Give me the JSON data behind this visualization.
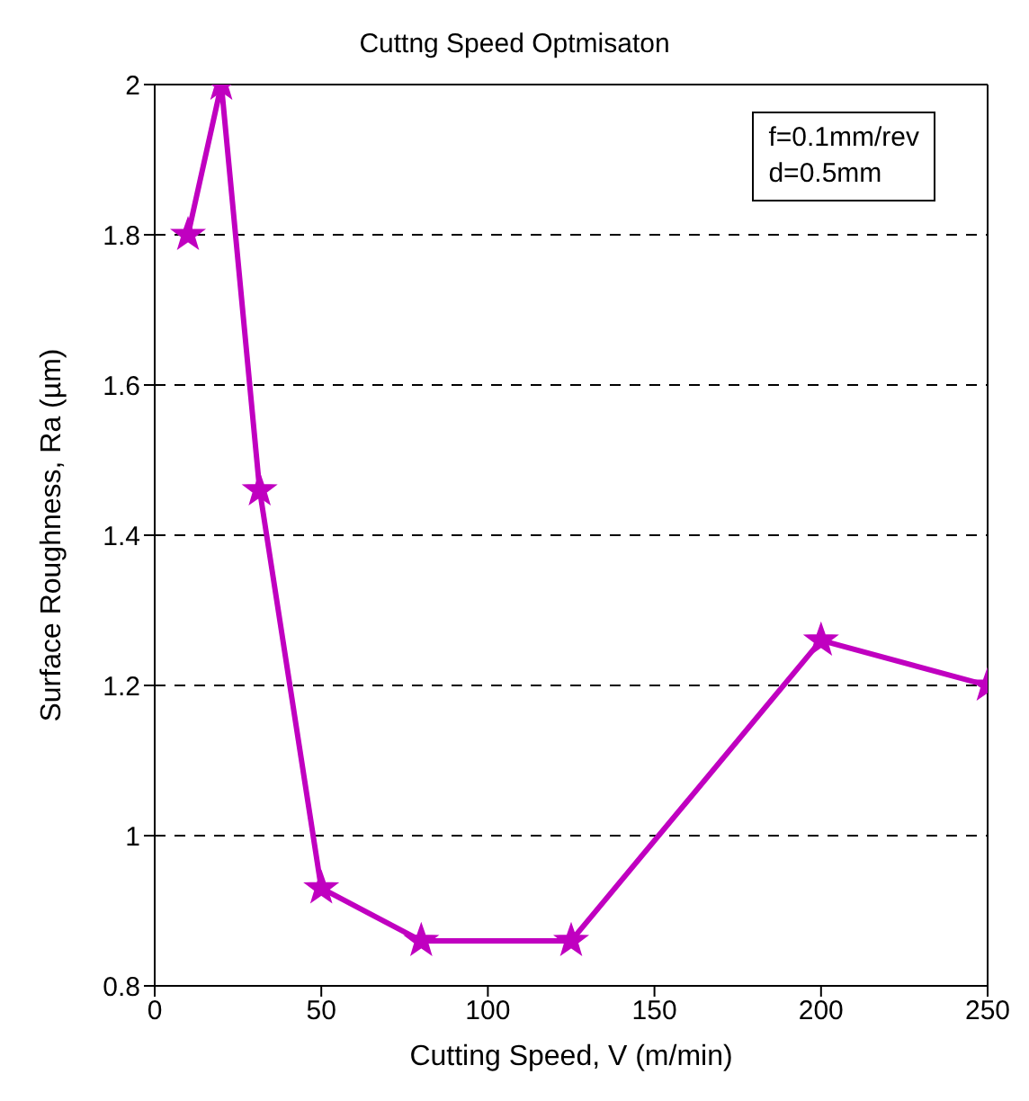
{
  "chart_data": {
    "type": "line",
    "title": "Cuttng Speed Optmisaton",
    "xlabel": "Cutting Speed, V (m/min)",
    "ylabel": "Surface Roughness, Ra (µm)",
    "annotations": [
      "f=0.1mm/rev",
      "d=0.5mm"
    ],
    "x": [
      10,
      20,
      31.5,
      50,
      80,
      125,
      200,
      250
    ],
    "series": [
      {
        "color": "#c000c0",
        "values": [
          1.8,
          2.0,
          1.46,
          0.93,
          0.86,
          0.86,
          1.26,
          1.2
        ]
      }
    ],
    "xlim": [
      0,
      250
    ],
    "xticks": [
      0,
      50,
      100,
      150,
      200,
      250
    ],
    "ylim": [
      0.8,
      2
    ],
    "yticks": [
      0.8,
      1,
      1.2,
      1.4,
      1.6,
      1.8,
      2
    ],
    "grid": "y",
    "marker": "star",
    "line_style": "solid",
    "legend": false
  }
}
